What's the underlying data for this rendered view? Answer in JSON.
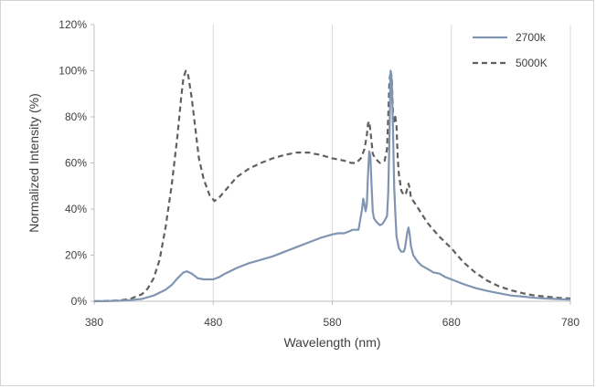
{
  "chart_data": {
    "type": "line",
    "title": "",
    "xlabel": "Wavelength (nm)",
    "ylabel": "Normalized Intensity (%)",
    "xlim": [
      380,
      780
    ],
    "ylim": [
      0,
      120
    ],
    "x_ticks": [
      380,
      480,
      580,
      680,
      780
    ],
    "y_ticks": [
      0,
      20,
      40,
      60,
      80,
      100,
      120
    ],
    "x_tick_labels": [
      "380",
      "480",
      "580",
      "680",
      "780"
    ],
    "y_tick_labels": [
      "0%",
      "20%",
      "40%",
      "60%",
      "80%",
      "100%",
      "120%"
    ],
    "grid": "vertical",
    "legend_position": "top-right",
    "series": [
      {
        "name": "2700k",
        "color": "#7f95b2",
        "style": "solid",
        "points": [
          [
            380,
            0
          ],
          [
            400,
            0.2
          ],
          [
            410,
            0.5
          ],
          [
            420,
            1
          ],
          [
            430,
            2.5
          ],
          [
            440,
            5
          ],
          [
            445,
            7
          ],
          [
            450,
            10
          ],
          [
            455,
            12.5
          ],
          [
            458,
            13
          ],
          [
            462,
            12
          ],
          [
            467,
            10
          ],
          [
            472,
            9.5
          ],
          [
            480,
            9.5
          ],
          [
            485,
            10.5
          ],
          [
            490,
            12
          ],
          [
            500,
            14.5
          ],
          [
            510,
            16.5
          ],
          [
            520,
            18
          ],
          [
            530,
            19.5
          ],
          [
            540,
            21.5
          ],
          [
            550,
            23.5
          ],
          [
            560,
            25.5
          ],
          [
            570,
            27.5
          ],
          [
            580,
            29
          ],
          [
            585,
            29.5
          ],
          [
            590,
            29.5
          ],
          [
            595,
            30.5
          ],
          [
            597,
            31
          ],
          [
            602,
            31
          ],
          [
            605,
            40
          ],
          [
            606,
            44.5
          ],
          [
            607,
            42
          ],
          [
            608,
            39
          ],
          [
            609,
            42
          ],
          [
            610,
            55
          ],
          [
            611,
            65
          ],
          [
            612,
            63
          ],
          [
            613,
            50
          ],
          [
            614,
            39
          ],
          [
            615,
            36
          ],
          [
            617,
            34.5
          ],
          [
            620,
            33
          ],
          [
            622,
            33.5
          ],
          [
            624,
            35
          ],
          [
            626,
            37
          ],
          [
            627,
            47
          ],
          [
            628,
            70
          ],
          [
            629,
            100
          ],
          [
            630,
            96
          ],
          [
            631,
            75
          ],
          [
            632,
            50
          ],
          [
            633,
            38
          ],
          [
            634,
            28
          ],
          [
            636,
            23
          ],
          [
            638,
            21.5
          ],
          [
            640,
            21.5
          ],
          [
            641,
            23
          ],
          [
            643,
            30
          ],
          [
            644,
            32
          ],
          [
            645,
            29
          ],
          [
            646,
            24
          ],
          [
            648,
            20
          ],
          [
            652,
            17
          ],
          [
            655,
            15.5
          ],
          [
            660,
            14
          ],
          [
            665,
            12.5
          ],
          [
            670,
            12
          ],
          [
            675,
            10.5
          ],
          [
            680,
            9.5
          ],
          [
            690,
            7.5
          ],
          [
            700,
            5.8
          ],
          [
            710,
            4.5
          ],
          [
            720,
            3.5
          ],
          [
            730,
            2.5
          ],
          [
            740,
            2
          ],
          [
            750,
            1.5
          ],
          [
            760,
            1.2
          ],
          [
            770,
            0.9
          ],
          [
            780,
            0.7
          ]
        ]
      },
      {
        "name": "5000K",
        "color": "#606060",
        "style": "dashed",
        "points": [
          [
            380,
            0
          ],
          [
            400,
            0.3
          ],
          [
            410,
            1
          ],
          [
            420,
            3
          ],
          [
            425,
            5.5
          ],
          [
            430,
            10
          ],
          [
            435,
            18
          ],
          [
            440,
            32
          ],
          [
            445,
            50
          ],
          [
            450,
            72
          ],
          [
            453,
            88
          ],
          [
            455,
            97
          ],
          [
            457,
            100
          ],
          [
            459,
            98
          ],
          [
            462,
            88
          ],
          [
            465,
            75
          ],
          [
            468,
            62
          ],
          [
            472,
            53
          ],
          [
            477,
            46
          ],
          [
            481,
            43.5
          ],
          [
            485,
            45
          ],
          [
            490,
            48
          ],
          [
            495,
            51
          ],
          [
            500,
            54
          ],
          [
            510,
            57.5
          ],
          [
            520,
            60
          ],
          [
            530,
            62
          ],
          [
            540,
            63.5
          ],
          [
            550,
            64.5
          ],
          [
            560,
            64.5
          ],
          [
            570,
            63.5
          ],
          [
            580,
            62
          ],
          [
            590,
            61
          ],
          [
            596,
            60
          ],
          [
            600,
            60
          ],
          [
            604,
            62
          ],
          [
            607,
            66
          ],
          [
            609,
            72
          ],
          [
            610,
            77
          ],
          [
            611,
            78
          ],
          [
            612,
            74
          ],
          [
            614,
            64
          ],
          [
            616,
            62
          ],
          [
            620,
            60
          ],
          [
            624,
            61
          ],
          [
            626,
            66
          ],
          [
            627,
            80
          ],
          [
            628,
            95
          ],
          [
            629,
            100
          ],
          [
            630,
            97
          ],
          [
            631,
            82
          ],
          [
            632,
            78
          ],
          [
            633,
            80
          ],
          [
            634,
            76
          ],
          [
            635,
            62
          ],
          [
            636,
            55
          ],
          [
            638,
            48
          ],
          [
            640,
            46
          ],
          [
            642,
            47
          ],
          [
            644,
            51
          ],
          [
            645,
            49
          ],
          [
            646,
            45
          ],
          [
            650,
            42
          ],
          [
            655,
            38
          ],
          [
            660,
            34
          ],
          [
            670,
            28
          ],
          [
            680,
            23
          ],
          [
            690,
            17
          ],
          [
            700,
            12.5
          ],
          [
            710,
            9
          ],
          [
            720,
            6.5
          ],
          [
            730,
            4.8
          ],
          [
            740,
            3.5
          ],
          [
            750,
            2.5
          ],
          [
            760,
            2
          ],
          [
            770,
            1.5
          ],
          [
            780,
            1.2
          ]
        ]
      }
    ]
  }
}
